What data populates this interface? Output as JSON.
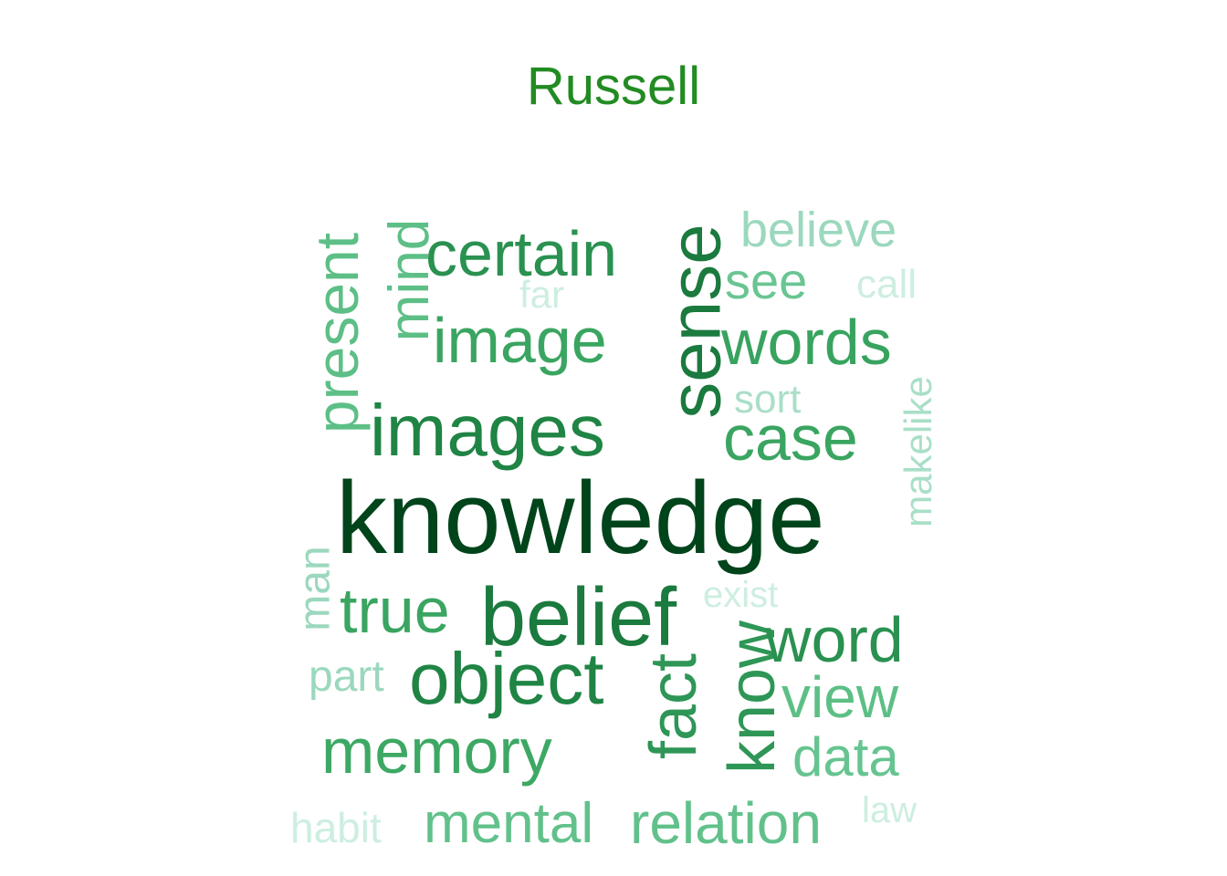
{
  "title": "Russell",
  "words": [
    {
      "id": "knowledge",
      "text": "knowledge",
      "color": "#00441b"
    },
    {
      "id": "belief",
      "text": "belief",
      "color": "#1b7a3e"
    },
    {
      "id": "sense",
      "text": "sense",
      "color": "#1b7a3e"
    },
    {
      "id": "images",
      "text": "images",
      "color": "#1f8444"
    },
    {
      "id": "object",
      "text": "object",
      "color": "#1f8444"
    },
    {
      "id": "certain",
      "text": "certain",
      "color": "#2a9150"
    },
    {
      "id": "image",
      "text": "image",
      "color": "#3aa561"
    },
    {
      "id": "words",
      "text": "words",
      "color": "#38a35f"
    },
    {
      "id": "case",
      "text": "case",
      "color": "#3aa561"
    },
    {
      "id": "fact",
      "text": "fact",
      "color": "#2e9656"
    },
    {
      "id": "know",
      "text": "know",
      "color": "#2e9656"
    },
    {
      "id": "word",
      "text": "word",
      "color": "#2a9150"
    },
    {
      "id": "true",
      "text": "true",
      "color": "#3aa561"
    },
    {
      "id": "memory",
      "text": "memory",
      "color": "#3da864"
    },
    {
      "id": "present",
      "text": "present",
      "color": "#5dbf86"
    },
    {
      "id": "mind",
      "text": "mind",
      "color": "#5dbf86"
    },
    {
      "id": "view",
      "text": "view",
      "color": "#5dbf86"
    },
    {
      "id": "relation",
      "text": "relation",
      "color": "#62c18b"
    },
    {
      "id": "mental",
      "text": "mental",
      "color": "#62c18b"
    },
    {
      "id": "data",
      "text": "data",
      "color": "#66c490"
    },
    {
      "id": "see",
      "text": "see",
      "color": "#69c592"
    },
    {
      "id": "believe",
      "text": "believe",
      "color": "#9bd8bd"
    },
    {
      "id": "man",
      "text": "man",
      "color": "#9bd8bd"
    },
    {
      "id": "part",
      "text": "part",
      "color": "#9bd8bd"
    },
    {
      "id": "sort",
      "text": "sort",
      "color": "#a9dfc7"
    },
    {
      "id": "makelike",
      "text": "makelike",
      "color": "#a9dfc7"
    },
    {
      "id": "far",
      "text": "far",
      "color": "#cdeee0"
    },
    {
      "id": "call",
      "text": "call",
      "color": "#cdeee0"
    },
    {
      "id": "exist",
      "text": "exist",
      "color": "#cdeee0"
    },
    {
      "id": "habit",
      "text": "habit",
      "color": "#cdeee0"
    },
    {
      "id": "law",
      "text": "law",
      "color": "#cdeee0"
    }
  ]
}
